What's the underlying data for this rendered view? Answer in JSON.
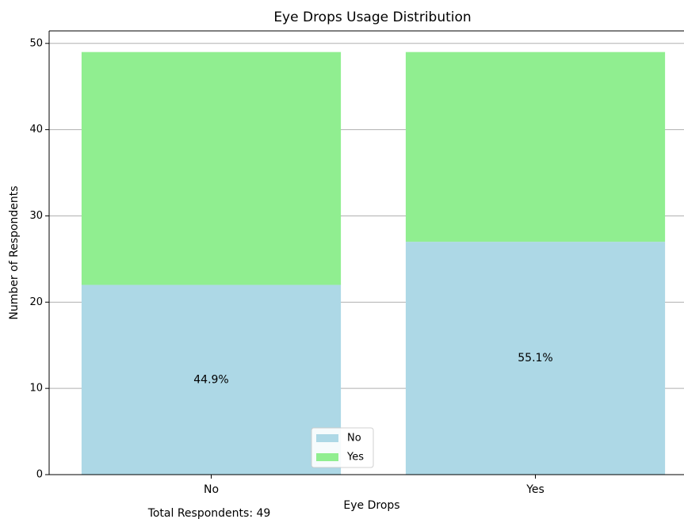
{
  "chart_data": {
    "type": "stacked_bar",
    "title": "Eye Drops Usage Distribution",
    "x_label": "Eye Drops",
    "y_label": "Number of Respondents",
    "categories": [
      "No",
      "Yes"
    ],
    "series": [
      {
        "name": "No",
        "color": "#add8e6",
        "values": [
          22,
          27
        ]
      },
      {
        "name": "Yes",
        "color": "#90ee90",
        "values": [
          27,
          22
        ]
      }
    ],
    "annotations": [
      "44.9%",
      "55.1%"
    ],
    "footnote": "Total Respondents: 49",
    "ylim": [
      0,
      51.45
    ],
    "yticks": [
      0,
      10,
      20,
      30,
      40,
      50
    ],
    "grid": true,
    "legend": "lower center"
  }
}
